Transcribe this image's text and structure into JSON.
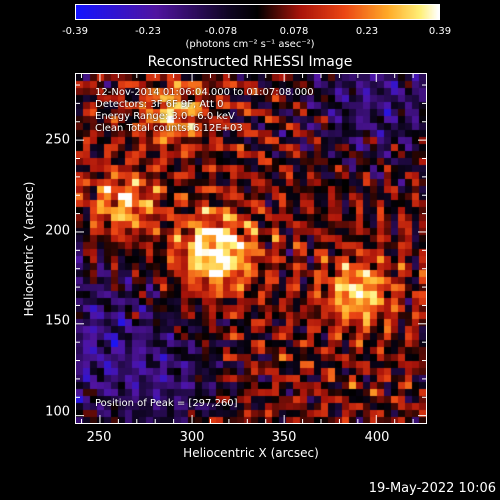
{
  "colorbar": {
    "ticks": [
      "-0.39",
      "-0.23",
      "-0.078",
      "0.078",
      "0.23",
      "0.39"
    ],
    "units": "(photons cm⁻² s⁻¹ asec⁻²)"
  },
  "title": "Reconstructed RHESSI Image",
  "annotations": {
    "time": "12-Nov-2014 01:06:04.000 to 01:07:08.000",
    "detectors": "Detectors: 3F 6F 9F, Att 0",
    "energy": "Energy Range: 3.0 - 6.0 keV",
    "clean": "Clean    Total counts: 6.12E+03",
    "peak": "Position of Peak = [297,260]"
  },
  "xlabel": "Heliocentric X (arcsec)",
  "ylabel": "Heliocentric Y (arcsec)",
  "timestamp": "19-May-2022 10:06",
  "chart_data": {
    "type": "heatmap",
    "title": "Reconstructed RHESSI Image",
    "xlabel": "Heliocentric X (arcsec)",
    "ylabel": "Heliocentric Y (arcsec)",
    "xlim": [
      237,
      427
    ],
    "ylim": [
      96,
      286
    ],
    "xticks": [
      250,
      300,
      350,
      400
    ],
    "yticks": [
      100,
      150,
      200,
      250
    ],
    "colorbar_range": [
      -0.39,
      0.39
    ],
    "colormap": "red-temperature (blue to white)",
    "peak_position": [
      297,
      260
    ],
    "sources": [
      {
        "x": 313,
        "y": 189,
        "intensity": 0.39
      },
      {
        "x": 390,
        "y": 167,
        "intensity": 0.3
      },
      {
        "x": 263,
        "y": 215,
        "intensity": 0.26
      },
      {
        "x": 290,
        "y": 265,
        "intensity": 0.25
      }
    ]
  }
}
